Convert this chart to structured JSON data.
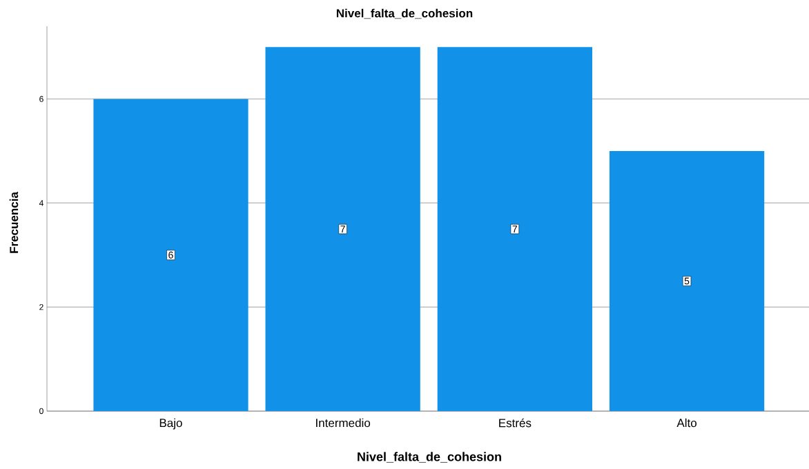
{
  "chart_data": {
    "type": "bar",
    "title": "Nivel_falta_de_cohesion",
    "xlabel": "Nivel_falta_de_cohesion",
    "ylabel": "Frecuencia",
    "categories": [
      "Bajo",
      "Intermedio",
      "Estrés",
      "Alto"
    ],
    "values": [
      6,
      7,
      7,
      5
    ],
    "color": "#1192e8",
    "ylim": [
      0,
      7.4
    ],
    "yticks": [
      0,
      2,
      4,
      6
    ],
    "grid": "y",
    "data_labels": true
  }
}
